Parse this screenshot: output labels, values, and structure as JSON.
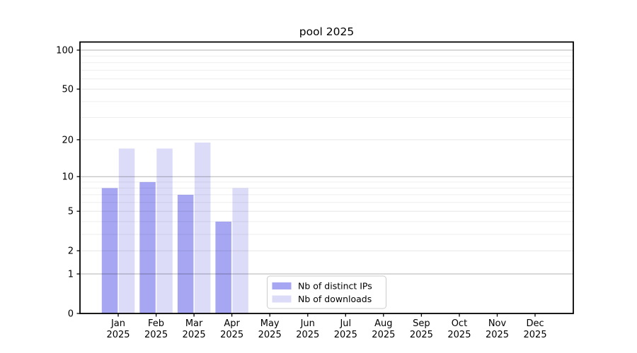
{
  "chart_data": {
    "type": "bar",
    "title": "pool 2025",
    "categories": [
      "Jan",
      "Feb",
      "Mar",
      "Apr",
      "May",
      "Jun",
      "Jul",
      "Aug",
      "Sep",
      "Oct",
      "Nov",
      "Dec"
    ],
    "x_year_label": "2025",
    "series": [
      {
        "name": "Nb of distinct IPs",
        "color": "#a6a6f2",
        "values": [
          8,
          9,
          7,
          4,
          0,
          0,
          0,
          0,
          0,
          0,
          0,
          0
        ]
      },
      {
        "name": "Nb of downloads",
        "color": "#dcdcf9",
        "values": [
          17,
          17,
          19,
          8,
          0,
          0,
          0,
          0,
          0,
          0,
          0,
          0
        ]
      }
    ],
    "y_axis": {
      "scale": "log1p",
      "major_ticks": [
        0,
        1,
        2,
        5,
        10,
        20,
        50,
        100
      ],
      "emphasized_ticks": [
        1,
        10,
        100
      ],
      "minor_ticks": [
        3,
        4,
        6,
        7,
        8,
        9,
        30,
        40,
        60,
        70,
        80,
        90
      ],
      "range": [
        0,
        116
      ]
    },
    "legend": {
      "position": "lower-center",
      "border_color": "#cccccc",
      "background": "#ffffff"
    },
    "grid": true,
    "colors": {
      "spine": "#000000",
      "grid_major_emphasis": "rgba(0,0,0,0.30)",
      "grid_major_light": "rgba(0,0,0,0.10)",
      "grid_minor": "rgba(0,0,0,0.065)",
      "tick_label": "#000000"
    }
  }
}
